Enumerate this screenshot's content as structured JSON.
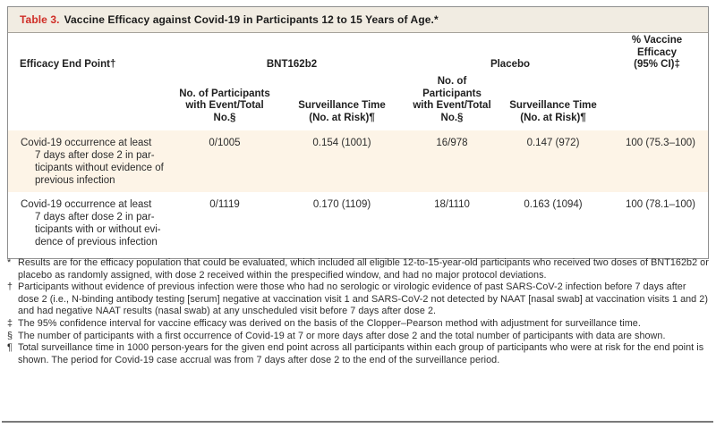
{
  "title": {
    "label": "Table 3.",
    "text": "Vaccine Efficacy against Covid-19 in Participants 12 to 15 Years of Age.*"
  },
  "table": {
    "col1_header": "Efficacy End Point†",
    "group_bnt": "BNT162b2",
    "group_placebo": "Placebo",
    "efficacy_header": "% Vaccine Efficacy\n(95% CI)‡",
    "sub_headers": [
      "No. of Participants\nwith Event/Total\nNo.§",
      "Surveillance Time\n(No. at Risk)¶",
      "No. of Participants\nwith Event/Total\nNo.§",
      "Surveillance Time\n(No. at Risk)¶"
    ],
    "rows": [
      {
        "end_point": "Covid-19 occurrence at least\n7 days after dose 2 in par-\nticipants without evidence of\nprevious infection",
        "bnt_events": "0/1005",
        "bnt_surveillance": "0.154 (1001)",
        "placebo_events": "16/978",
        "placebo_surveillance": "0.147 (972)",
        "efficacy": "100 (75.3–100)"
      },
      {
        "end_point": "Covid-19 occurrence at least\n7 days after dose 2 in par-\nticipants with or without evi-\ndence of previous infection",
        "bnt_events": "0/1119",
        "bnt_surveillance": "0.170 (1109)",
        "placebo_events": "18/1110",
        "placebo_surveillance": "0.163 (1094)",
        "efficacy": "100 (78.1–100)"
      }
    ]
  },
  "footnotes": [
    {
      "symbol": "*",
      "text": "Results are for the efficacy population that could be evaluated, which included all eligible 12-to-15-year-old participants who received two doses of BNT162b2 or placebo as randomly assigned, with dose 2 received within the prespecified window, and had no major protocol deviations."
    },
    {
      "symbol": "†",
      "text": "Participants without evidence of previous infection were those who had no serologic or virologic evidence of past SARS-CoV-2 infection before 7 days after dose 2 (i.e., N-binding antibody testing [serum] negative at vaccination visit 1 and SARS-CoV-2 not detected by NAAT [nasal swab] at vaccination visits 1 and 2) and had negative NAAT results (nasal swab) at any unscheduled visit before 7 days after dose 2."
    },
    {
      "symbol": "‡",
      "text": "The 95% confidence interval for vaccine efficacy was derived on the basis of the Clopper–Pearson method with adjustment for surveillance time."
    },
    {
      "symbol": "§",
      "text": "The number of participants with a first occurrence of Covid-19 at 7 or more days after dose 2 and the total number of participants with data are shown."
    },
    {
      "symbol": "¶",
      "text": "Total surveillance time in 1000 person-years for the given end point across all participants within each group of participants who were at risk for the end point is shown. The period for Covid-19 case accrual was from 7 days after dose 2 to the end of the surveillance period."
    }
  ],
  "colors": {
    "title_accent": "#cf2d26",
    "title_bar_bg": "#f1ece2",
    "row1_bg": "#fdf4e7",
    "box_border": "#8e8e8e",
    "bottom_rule": "#7a7a7a"
  }
}
